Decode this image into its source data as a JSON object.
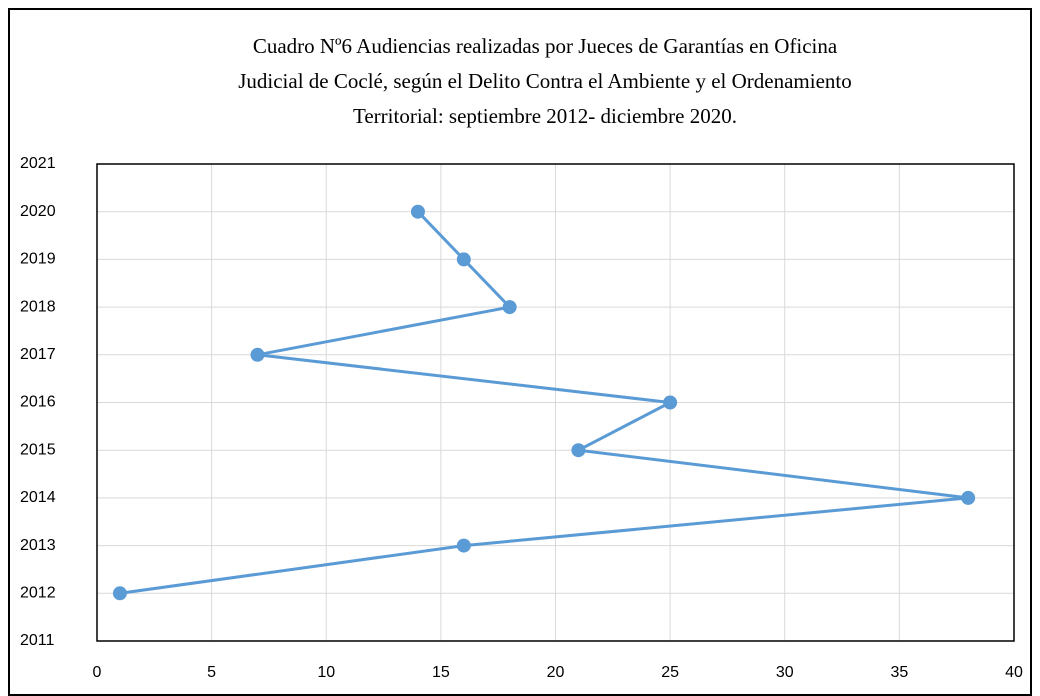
{
  "chart_data": {
    "type": "line",
    "title": [
      "Cuadro Nº6 Audiencias realizadas por Jueces de Garantías en Oficina",
      "Judicial de Coclé, según el Delito Contra el Ambiente y el Ordenamiento",
      "Territorial: septiembre 2012- diciembre 2020."
    ],
    "x": [
      1,
      16,
      38,
      21,
      25,
      7,
      18,
      16,
      14
    ],
    "values": [
      2012,
      2013,
      2014,
      2015,
      2016,
      2017,
      2018,
      2019,
      2020
    ],
    "color": "#5b9bd5",
    "xlim": [
      0,
      40
    ],
    "xticks": [
      0,
      5,
      10,
      15,
      20,
      25,
      30,
      35,
      40
    ],
    "ylim": [
      2011,
      2021
    ],
    "yticks": [
      2011,
      2012,
      2013,
      2014,
      2015,
      2016,
      2017,
      2018,
      2019,
      2020,
      2021
    ],
    "grid": true
  }
}
